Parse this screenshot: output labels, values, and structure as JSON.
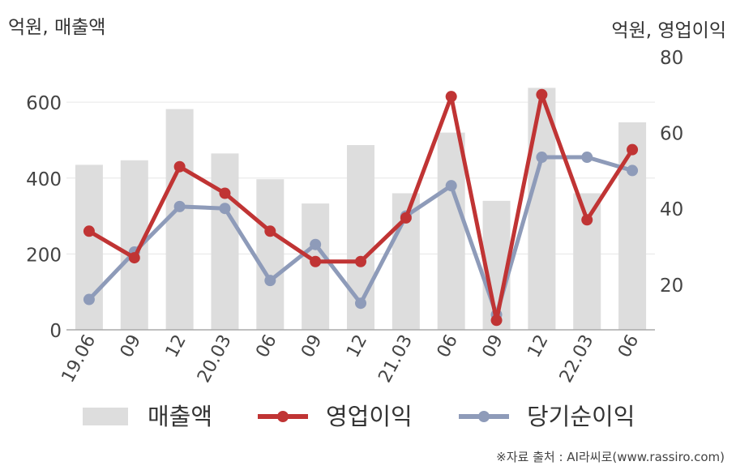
{
  "units": {
    "left": "억원, 매출액",
    "right": "억원, 영업이익"
  },
  "source": "※자료 출처 : AI라씨로(www.rassiro.com)",
  "legend": [
    {
      "label": "매출액",
      "color": "#dddddd",
      "type": "bar"
    },
    {
      "label": "영업이익",
      "color": "#c03434",
      "type": "line"
    },
    {
      "label": "당기순이익",
      "color": "#8e9bb9",
      "type": "line"
    }
  ],
  "chart_data": {
    "type": "bar+line",
    "categories": [
      "19.06",
      "09",
      "12",
      "20.03",
      "06",
      "09",
      "12",
      "21.03",
      "06",
      "09",
      "12",
      "22.03",
      "06"
    ],
    "left_axis": {
      "ticks": [
        0,
        200,
        400,
        600
      ],
      "ylim": [
        0,
        720
      ]
    },
    "right_axis": {
      "ticks": [
        20,
        40,
        60,
        80
      ],
      "ylim": [
        8,
        80
      ]
    },
    "series": [
      {
        "name": "매출액",
        "type": "bar",
        "axis": "left",
        "values": [
          435,
          447,
          582,
          465,
          397,
          333,
          487,
          360,
          520,
          340,
          638,
          360,
          547
        ]
      },
      {
        "name": "영업이익",
        "type": "line",
        "axis": "right",
        "values": [
          34,
          27,
          51,
          44,
          34,
          26,
          26,
          37.5,
          69.5,
          10.5,
          70,
          37,
          55.5
        ]
      },
      {
        "name": "당기순이익",
        "type": "line",
        "axis": "right",
        "values": [
          16,
          28.5,
          40.5,
          40,
          21,
          30.5,
          15,
          38,
          46,
          12,
          53.5,
          53.5,
          50
        ]
      }
    ],
    "grid": true
  }
}
